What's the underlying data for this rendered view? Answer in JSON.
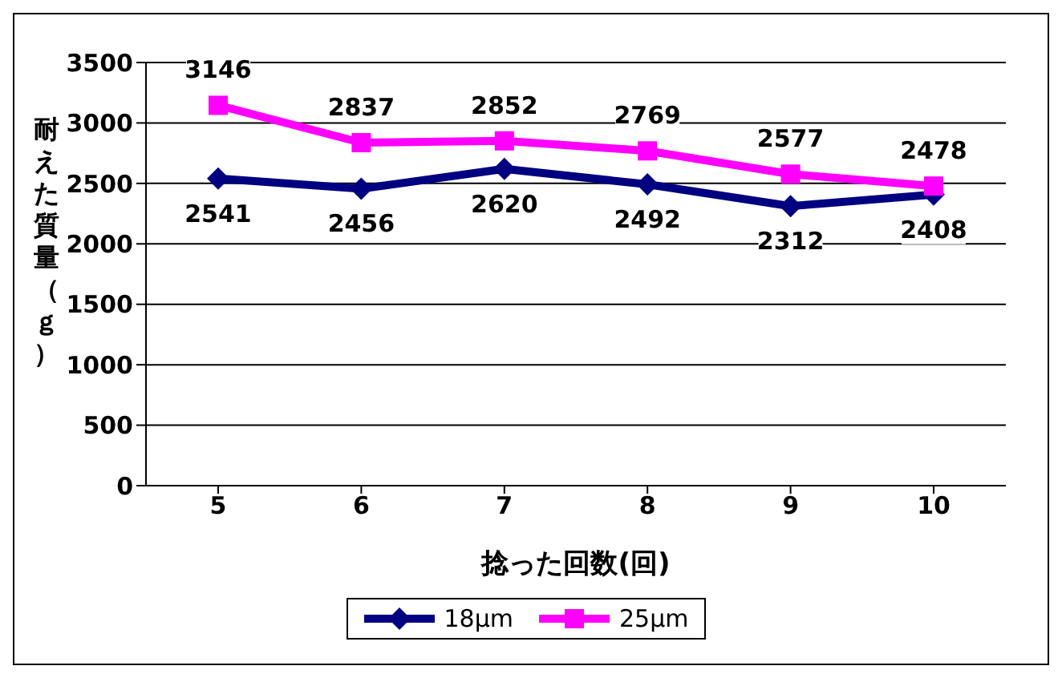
{
  "chart_data": {
    "type": "line",
    "xlabel": "捻った回数(回)",
    "ylabel": "耐えた質量（ｇ）",
    "categories": [
      "5",
      "6",
      "7",
      "8",
      "9",
      "10"
    ],
    "series": [
      {
        "name": "18μm",
        "color": "#000080",
        "marker": "diamond",
        "values": [
          2541,
          2456,
          2620,
          2492,
          2312,
          2408
        ]
      },
      {
        "name": "25μm",
        "color": "#ff00ff",
        "marker": "square",
        "values": [
          3146,
          2837,
          2852,
          2769,
          2577,
          2478
        ]
      }
    ],
    "ylim": [
      0,
      3500
    ],
    "yticks": [
      0,
      500,
      1000,
      1500,
      2000,
      2500,
      3000,
      3500
    ],
    "grid": "y",
    "legend": "bottom",
    "data_labels": true
  }
}
